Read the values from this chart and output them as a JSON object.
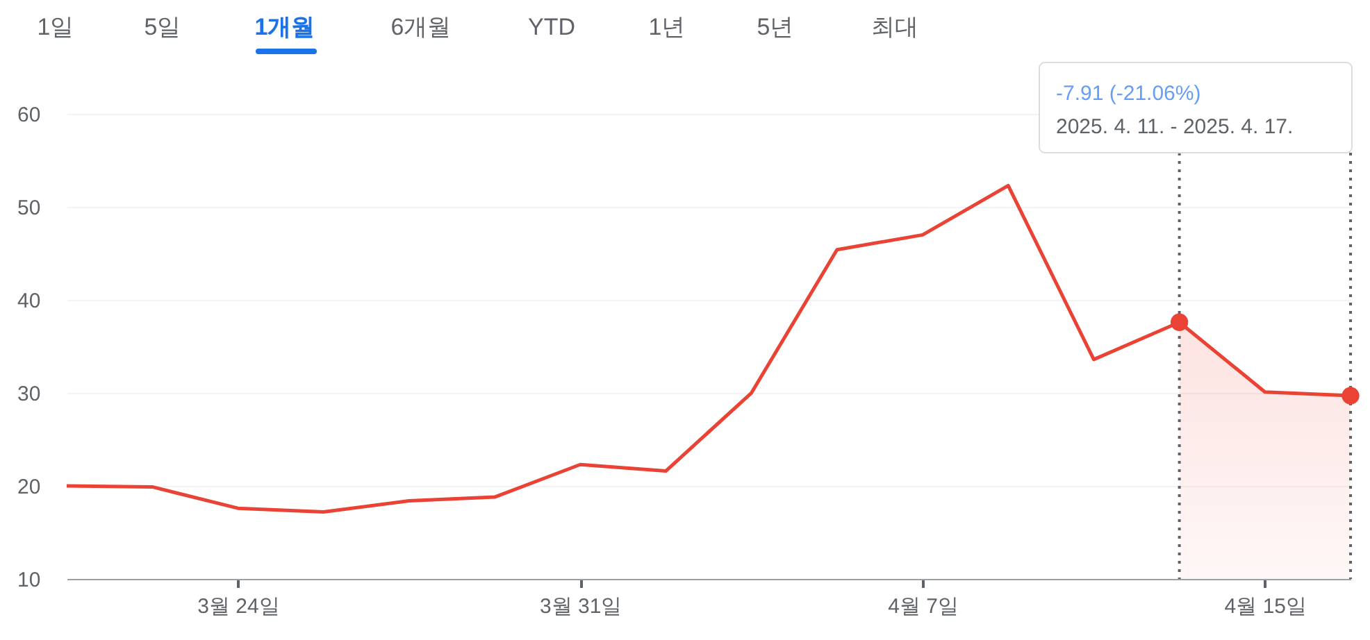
{
  "chart_data": {
    "type": "line",
    "categories": [
      null,
      null,
      "3월 24일",
      null,
      null,
      null,
      "3월 31일",
      null,
      null,
      null,
      "4월 7일",
      null,
      null,
      null,
      "4월 15일",
      null
    ],
    "series": [
      {
        "color": "#ea4335",
        "values": [
          20.0,
          19.9,
          17.6,
          17.2,
          18.4,
          18.8,
          22.3,
          21.6,
          30.0,
          45.4,
          47.0,
          52.3,
          33.6,
          37.6,
          30.1,
          29.7
        ],
        "marker": "none"
      },
      {
        "type": "area",
        "color": "#ea4335",
        "values": [
          null,
          null,
          null,
          null,
          null,
          null,
          null,
          null,
          null,
          null,
          null,
          null,
          null,
          37.6,
          30.1,
          29.7
        ]
      },
      {
        "type": "scatter",
        "color": "#ea4335",
        "values": [
          null,
          null,
          null,
          null,
          null,
          null,
          null,
          null,
          null,
          null,
          null,
          null,
          null,
          37.6,
          null,
          29.7
        ],
        "marker": "circle"
      }
    ],
    "ylim": [
      10,
      63
    ],
    "yticks": [
      10,
      20,
      30,
      40,
      50,
      60
    ],
    "grid": "y",
    "annotations": [
      "1일",
      "5일",
      "1개월",
      "6개월",
      "YTD",
      "1년",
      "5년",
      "최대",
      "-7.91 (-21.06%)",
      "2025. 4. 11. - 2025. 4. 17."
    ]
  }
}
